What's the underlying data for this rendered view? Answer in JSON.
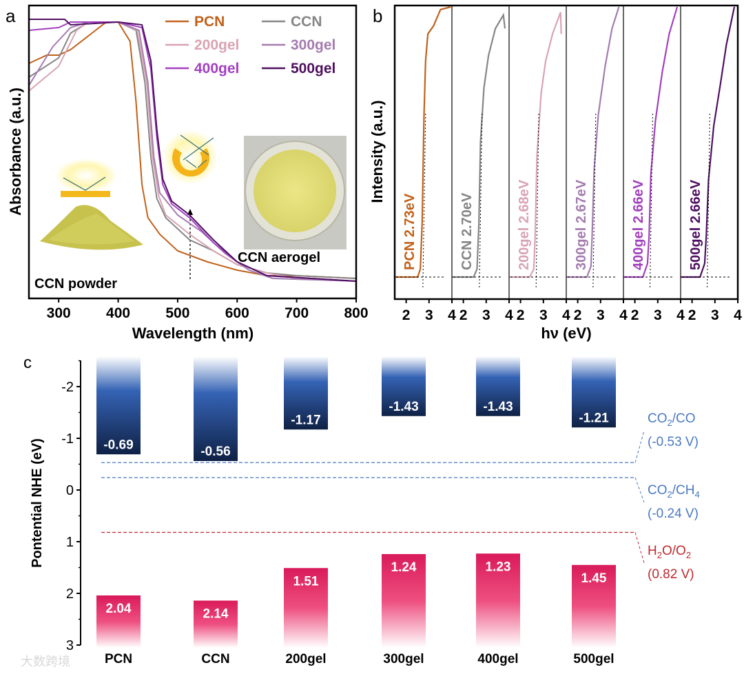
{
  "chart_data": [
    {
      "type": "line",
      "panel_label": "a",
      "xlabel": "Wavelength (nm)",
      "ylabel": "Absorbance (a.u.)",
      "xlim": [
        250,
        800
      ],
      "ylim": [
        0,
        1
      ],
      "xticks": [
        300,
        400,
        500,
        600,
        700,
        800
      ],
      "legend_placement": "top-right",
      "annotations": {
        "powder": "CCN powder",
        "aerogel": "CCN aerogel"
      },
      "series": [
        {
          "name": "PCN",
          "color": "#c0611a",
          "points": [
            [
              250,
              0.84
            ],
            [
              280,
              0.87
            ],
            [
              300,
              0.87
            ],
            [
              320,
              0.89
            ],
            [
              350,
              0.94
            ],
            [
              380,
              0.99
            ],
            [
              400,
              0.99
            ],
            [
              420,
              0.92
            ],
            [
              430,
              0.7
            ],
            [
              440,
              0.4
            ],
            [
              450,
              0.28
            ],
            [
              470,
              0.22
            ],
            [
              500,
              0.16
            ],
            [
              550,
              0.12
            ],
            [
              600,
              0.09
            ],
            [
              650,
              0.07
            ],
            [
              700,
              0.07
            ],
            [
              800,
              0.06
            ]
          ]
        },
        {
          "name": "CCN",
          "color": "#858585",
          "points": [
            [
              250,
              0.79
            ],
            [
              300,
              0.86
            ],
            [
              320,
              0.95
            ],
            [
              350,
              0.99
            ],
            [
              400,
              0.99
            ],
            [
              430,
              0.96
            ],
            [
              445,
              0.77
            ],
            [
              455,
              0.5
            ],
            [
              465,
              0.35
            ],
            [
              480,
              0.28
            ],
            [
              520,
              0.2
            ],
            [
              560,
              0.16
            ],
            [
              600,
              0.11
            ],
            [
              650,
              0.08
            ],
            [
              700,
              0.07
            ],
            [
              800,
              0.06
            ]
          ]
        },
        {
          "name": "200gel",
          "color": "#d9a3b3",
          "points": [
            [
              250,
              0.74
            ],
            [
              300,
              0.83
            ],
            [
              330,
              0.96
            ],
            [
              350,
              0.99
            ],
            [
              400,
              0.99
            ],
            [
              432,
              0.96
            ],
            [
              448,
              0.77
            ],
            [
              458,
              0.5
            ],
            [
              468,
              0.36
            ],
            [
              480,
              0.29
            ],
            [
              520,
              0.22
            ],
            [
              560,
              0.16
            ],
            [
              600,
              0.11
            ],
            [
              650,
              0.08
            ],
            [
              700,
              0.06
            ],
            [
              800,
              0.05
            ]
          ]
        },
        {
          "name": "300gel",
          "color": "#a47bb0",
          "points": [
            [
              250,
              0.76
            ],
            [
              290,
              0.9
            ],
            [
              320,
              0.97
            ],
            [
              350,
              0.99
            ],
            [
              400,
              0.99
            ],
            [
              435,
              0.96
            ],
            [
              450,
              0.77
            ],
            [
              460,
              0.5
            ],
            [
              470,
              0.37
            ],
            [
              500,
              0.29
            ],
            [
              540,
              0.23
            ],
            [
              580,
              0.15
            ],
            [
              620,
              0.09
            ],
            [
              660,
              0.06
            ],
            [
              800,
              0.05
            ]
          ]
        },
        {
          "name": "400gel",
          "color": "#a23fbf",
          "points": [
            [
              250,
              0.96
            ],
            [
              300,
              0.97
            ],
            [
              320,
              0.99
            ],
            [
              400,
              0.99
            ],
            [
              440,
              0.97
            ],
            [
              455,
              0.82
            ],
            [
              465,
              0.57
            ],
            [
              475,
              0.4
            ],
            [
              490,
              0.33
            ],
            [
              520,
              0.28
            ],
            [
              560,
              0.19
            ],
            [
              600,
              0.12
            ],
            [
              650,
              0.07
            ],
            [
              800,
              0.05
            ]
          ]
        },
        {
          "name": "500gel",
          "color": "#4e0f60",
          "points": [
            [
              250,
              1.0
            ],
            [
              310,
              1.0
            ],
            [
              320,
              0.98
            ],
            [
              400,
              0.99
            ],
            [
              440,
              0.98
            ],
            [
              455,
              0.85
            ],
            [
              465,
              0.6
            ],
            [
              475,
              0.42
            ],
            [
              490,
              0.34
            ],
            [
              520,
              0.29
            ],
            [
              560,
              0.2
            ],
            [
              600,
              0.12
            ],
            [
              650,
              0.07
            ],
            [
              800,
              0.05
            ]
          ]
        }
      ]
    },
    {
      "type": "line",
      "panel_label": "b",
      "xlabel": "hν (eV)",
      "ylabel": "Intensity (a.u.)",
      "xlim": [
        1.5,
        4
      ],
      "xticks": [
        2,
        3,
        4
      ],
      "series": [
        {
          "name": "PCN",
          "label": "PCN 2.73eV",
          "bandgap": 2.73,
          "color": "#c0611a",
          "points": [
            [
              1.5,
              0
            ],
            [
              2.5,
              0
            ],
            [
              2.62,
              0.03
            ],
            [
              2.7,
              0.2
            ],
            [
              2.78,
              0.6
            ],
            [
              2.85,
              0.8
            ],
            [
              2.95,
              0.9
            ],
            [
              3.2,
              0.93
            ],
            [
              3.5,
              0.99
            ],
            [
              3.95,
              1.0
            ]
          ]
        },
        {
          "name": "CCN",
          "label": "CCN 2.70eV",
          "bandgap": 2.7,
          "color": "#858585",
          "points": [
            [
              1.5,
              0
            ],
            [
              2.45,
              0
            ],
            [
              2.6,
              0.03
            ],
            [
              2.68,
              0.2
            ],
            [
              2.75,
              0.5
            ],
            [
              2.9,
              0.7
            ],
            [
              3.1,
              0.82
            ],
            [
              3.4,
              0.92
            ],
            [
              3.75,
              0.97
            ],
            [
              3.82,
              0.92
            ]
          ]
        },
        {
          "name": "200gel",
          "label": "200gel 2.68eV",
          "bandgap": 2.68,
          "color": "#d9a3b3",
          "points": [
            [
              1.5,
              0
            ],
            [
              2.4,
              0
            ],
            [
              2.58,
              0.03
            ],
            [
              2.64,
              0.15
            ],
            [
              2.72,
              0.45
            ],
            [
              2.9,
              0.68
            ],
            [
              3.1,
              0.8
            ],
            [
              3.4,
              0.9
            ],
            [
              3.75,
              0.98
            ],
            [
              3.78,
              0.9
            ]
          ]
        },
        {
          "name": "300gel",
          "label": "300gel 2.67eV",
          "bandgap": 2.67,
          "color": "#a47bb0",
          "points": [
            [
              1.5,
              0
            ],
            [
              2.4,
              0
            ],
            [
              2.58,
              0.04
            ],
            [
              2.63,
              0.15
            ],
            [
              2.72,
              0.4
            ],
            [
              2.9,
              0.6
            ],
            [
              3.2,
              0.78
            ],
            [
              3.5,
              0.92
            ],
            [
              3.8,
              1.0
            ]
          ]
        },
        {
          "name": "400gel",
          "label": "400gel 2.66eV",
          "bandgap": 2.66,
          "color": "#a23fbf",
          "points": [
            [
              1.5,
              0
            ],
            [
              2.35,
              0
            ],
            [
              2.55,
              0.05
            ],
            [
              2.62,
              0.15
            ],
            [
              2.7,
              0.38
            ],
            [
              2.9,
              0.58
            ],
            [
              3.2,
              0.76
            ],
            [
              3.5,
              0.9
            ],
            [
              3.85,
              1.0
            ]
          ]
        },
        {
          "name": "500gel",
          "label": "500gel 2.66eV",
          "bandgap": 2.66,
          "color": "#4e0f60",
          "points": [
            [
              1.5,
              0
            ],
            [
              2.35,
              0
            ],
            [
              2.55,
              0.05
            ],
            [
              2.62,
              0.15
            ],
            [
              2.72,
              0.36
            ],
            [
              2.95,
              0.56
            ],
            [
              3.25,
              0.72
            ],
            [
              3.5,
              0.86
            ],
            [
              3.85,
              1.0
            ]
          ]
        }
      ]
    },
    {
      "type": "bar",
      "panel_label": "c",
      "ylabel": "Pontential NHE (eV)",
      "ylim": [
        -2.5,
        3
      ],
      "yticks": [
        -2,
        -1,
        0,
        1,
        2,
        3
      ],
      "categories": [
        "PCN",
        "CCN",
        "200gel",
        "300gel",
        "400gel",
        "500gel"
      ],
      "conduction_band": [
        -0.69,
        -0.56,
        -1.17,
        -1.43,
        -1.43,
        -1.21
      ],
      "valence_band": [
        2.04,
        2.14,
        1.51,
        1.24,
        1.23,
        1.45
      ],
      "cb_labels": [
        "-0.69",
        "-0.56",
        "-1.17",
        "-1.43",
        "-1.43",
        "-1.21"
      ],
      "vb_labels": [
        "2.04",
        "2.14",
        "1.51",
        "1.24",
        "1.23",
        "1.45"
      ],
      "reference_lines": [
        {
          "name": "CO2/CO",
          "value": -0.53,
          "label_a": "CO",
          "sub_a": "2",
          "label_b": "/CO",
          "sub_b": "",
          "potential": "(-0.53 V)",
          "color": "#4a78c4"
        },
        {
          "name": "CO2/CH4",
          "value": -0.24,
          "label_a": "CO",
          "sub_a": "2",
          "label_b": "/CH",
          "sub_b": "4",
          "potential": "(-0.24 V)",
          "color": "#4a78c4"
        },
        {
          "name": "H2O/O2",
          "value": 0.82,
          "label_a": "H",
          "sub_a": "2",
          "label_b": "O/O",
          "sub_b": "2",
          "potential": "(0.82 V)",
          "color": "#c0282d"
        }
      ]
    }
  ],
  "watermark": "大数跨境"
}
